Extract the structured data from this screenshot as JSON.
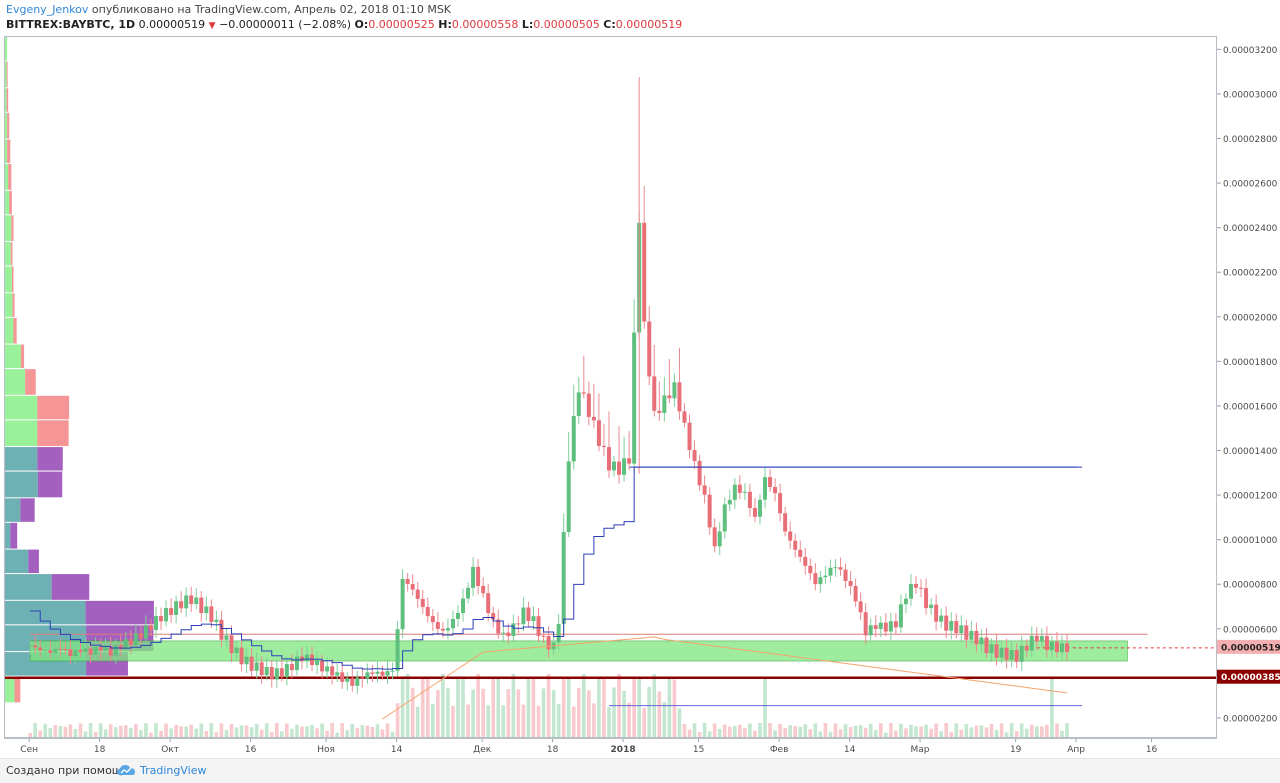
{
  "header": {
    "author": "Evgeny_Jenkov",
    "published_text": "опубликовано на TradingView.com, Апрель 02, 2018 01:10 MSK",
    "symbol": "BITTREX:BAYBTC, 1D",
    "last": "0.00000519",
    "change": "−0.00000011 (−2.08%)",
    "open_label": "O:",
    "open": "0.00000525",
    "high_label": "H:",
    "high": "0.00000558",
    "low_label": "L:",
    "low": "0.00000505",
    "close_label": "C:",
    "close": "0.00000519"
  },
  "footer": {
    "made_with": "Создано при помощи",
    "brand": "TradingView"
  },
  "colors": {
    "up": "#7fcf9a",
    "down": "#ec8a90",
    "up_body": "#5fbf7e",
    "down_body": "#e86f78",
    "vwap_line": "#2b3fb8",
    "zone_fill": "#7ee87e",
    "support_line": "#8b0000",
    "sma_line": "#f5a46f",
    "axis_text": "#4a4a4a"
  },
  "chart_data": {
    "type": "candlestick",
    "symbol": "BITTREX:BAYBTC",
    "interval": "1D",
    "y_axis": {
      "ticks": [
        "0.00000200",
        "0.00000400",
        "0.00000600",
        "0.00000800",
        "0.00001000",
        "0.00001200",
        "0.00001400",
        "0.00001600",
        "0.00001800",
        "0.00002000",
        "0.00002200",
        "0.00002400",
        "0.00002600",
        "0.00002800",
        "0.00003000",
        "0.00003200"
      ],
      "tick_values": [
        2e-06,
        4e-06,
        6e-06,
        8e-06,
        1e-05,
        1.2e-05,
        1.4e-05,
        1.6e-05,
        1.8e-05,
        2e-05,
        2.2e-05,
        2.4e-05,
        2.6e-05,
        2.8e-05,
        3e-05,
        3.2e-05
      ],
      "range": [
        1.1e-06,
        3.26e-05
      ],
      "price_labels": [
        {
          "label": "0.00000519",
          "value": 5.19e-06,
          "style": "current"
        },
        {
          "label": "0.00000385",
          "value": 3.85e-06,
          "style": "support"
        }
      ]
    },
    "x_axis": {
      "labels": [
        "Сен",
        "18",
        "Окт",
        "16",
        "Ноя",
        "14",
        "Дек",
        "18",
        "2018",
        "15",
        "Фев",
        "14",
        "Мар",
        "19",
        "Апр",
        "16"
      ],
      "label_days": [
        0,
        14,
        28,
        44,
        59,
        73,
        90,
        104,
        118,
        133,
        149,
        163,
        177,
        196,
        208,
        223
      ],
      "bold_labels": [
        "2018"
      ],
      "range_days": [
        -5,
        236
      ]
    },
    "horizontal_levels": [
      {
        "value": 1.33e-05,
        "from_day": 119,
        "to_day": 209,
        "color": "#2b3fb8"
      },
      {
        "value": 5.8e-06,
        "from_day": 0,
        "to_day": 222,
        "color": "#e07a7a"
      },
      {
        "value": 3.85e-06,
        "from_day": -5,
        "to_day": 236,
        "color": "#8b0000"
      },
      {
        "value": 2.6e-06,
        "from_day": 115,
        "to_day": 209,
        "color": "#6666dd"
      }
    ],
    "zone": {
      "from_day": 0,
      "to_day": 218,
      "low": 4.6e-06,
      "high": 5.5e-06
    },
    "volume_profile": [
      {
        "price_low": 3.15e-05,
        "price_high": 3.26e-05,
        "up": 0.4,
        "down": 0.0
      },
      {
        "price_low": 3.03e-05,
        "price_high": 3.15e-05,
        "up": 0.3,
        "down": 0.2
      },
      {
        "price_low": 2.92e-05,
        "price_high": 3.03e-05,
        "up": 0.3,
        "down": 0.3
      },
      {
        "price_low": 2.8e-05,
        "price_high": 2.92e-05,
        "up": 0.4,
        "down": 0.4
      },
      {
        "price_low": 2.69e-05,
        "price_high": 2.8e-05,
        "up": 0.4,
        "down": 0.6
      },
      {
        "price_low": 2.57e-05,
        "price_high": 2.69e-05,
        "up": 0.6,
        "down": 0.6
      },
      {
        "price_low": 2.46e-05,
        "price_high": 2.57e-05,
        "up": 0.8,
        "down": 0.5
      },
      {
        "price_low": 2.34e-05,
        "price_high": 2.46e-05,
        "up": 1.2,
        "down": 0.4
      },
      {
        "price_low": 2.23e-05,
        "price_high": 2.34e-05,
        "up": 1.1,
        "down": 0.3
      },
      {
        "price_low": 2.11e-05,
        "price_high": 2.23e-05,
        "up": 1.3,
        "down": 0.3
      },
      {
        "price_low": 2e-05,
        "price_high": 2.11e-05,
        "up": 1.4,
        "down": 0.4
      },
      {
        "price_low": 1.88e-05,
        "price_high": 2e-05,
        "up": 1.6,
        "down": 0.6
      },
      {
        "price_low": 1.77e-05,
        "price_high": 1.88e-05,
        "up": 3.0,
        "down": 0.6
      },
      {
        "price_low": 1.65e-05,
        "price_high": 1.77e-05,
        "up": 3.8,
        "down": 2.0
      },
      {
        "price_low": 1.54e-05,
        "price_high": 1.65e-05,
        "up": 6.1,
        "down": 6.0
      },
      {
        "price_low": 1.42e-05,
        "price_high": 1.54e-05,
        "up": 6.1,
        "down": 5.9
      },
      {
        "price_low": 1.31e-05,
        "price_high": 1.42e-05,
        "up": 6.1,
        "down": 4.8
      },
      {
        "price_low": 1.19e-05,
        "price_high": 1.31e-05,
        "up": 6.2,
        "down": 4.6
      },
      {
        "price_low": 1.08e-05,
        "price_high": 1.19e-05,
        "up": 2.9,
        "down": 2.7
      },
      {
        "price_low": 9.6e-06,
        "price_high": 1.08e-05,
        "up": 1.0,
        "down": 1.3
      },
      {
        "price_low": 8.5e-06,
        "price_high": 9.6e-06,
        "up": 4.4,
        "down": 2.0
      },
      {
        "price_low": 7.3e-06,
        "price_high": 8.5e-06,
        "up": 8.8,
        "down": 7.1
      },
      {
        "price_low": 6.2e-06,
        "price_high": 7.3e-06,
        "up": 15.2,
        "down": 12.9
      },
      {
        "price_low": 5e-06,
        "price_high": 6.2e-06,
        "up": 15.3,
        "down": 12.7
      },
      {
        "price_low": 3.9e-06,
        "price_high": 5e-06,
        "up": 15.3,
        "down": 7.9
      },
      {
        "price_low": 2.7e-06,
        "price_high": 3.9e-06,
        "up": 1.8,
        "down": 1.1
      }
    ],
    "series_close": [
      [
        0,
        5.3
      ],
      [
        2,
        5.1
      ],
      [
        4,
        5.0
      ],
      [
        6,
        5.2
      ],
      [
        8,
        4.9
      ],
      [
        10,
        5.1
      ],
      [
        12,
        5.0
      ],
      [
        14,
        5.2
      ],
      [
        16,
        5.0
      ],
      [
        18,
        5.3
      ],
      [
        20,
        5.5
      ],
      [
        22,
        5.8
      ],
      [
        24,
        6.2
      ],
      [
        26,
        6.6
      ],
      [
        28,
        6.9
      ],
      [
        30,
        7.2
      ],
      [
        32,
        7.4
      ],
      [
        34,
        7.0
      ],
      [
        36,
        6.6
      ],
      [
        38,
        5.8
      ],
      [
        40,
        5.2
      ],
      [
        42,
        4.7
      ],
      [
        44,
        4.4
      ],
      [
        46,
        4.2
      ],
      [
        48,
        4.0
      ],
      [
        50,
        4.1
      ],
      [
        52,
        4.4
      ],
      [
        54,
        4.8
      ],
      [
        56,
        4.6
      ],
      [
        58,
        4.3
      ],
      [
        60,
        4.1
      ],
      [
        62,
        3.8
      ],
      [
        64,
        3.6
      ],
      [
        66,
        3.9
      ],
      [
        68,
        4.1
      ],
      [
        70,
        4.0
      ],
      [
        72,
        4.2
      ],
      [
        73,
        6.0
      ],
      [
        74,
        8.3
      ],
      [
        76,
        7.8
      ],
      [
        78,
        7.0
      ],
      [
        80,
        6.3
      ],
      [
        82,
        5.9
      ],
      [
        84,
        6.4
      ],
      [
        86,
        7.3
      ],
      [
        88,
        8.7
      ],
      [
        90,
        7.5
      ],
      [
        92,
        6.3
      ],
      [
        94,
        5.7
      ],
      [
        96,
        6.1
      ],
      [
        98,
        6.8
      ],
      [
        100,
        6.4
      ],
      [
        102,
        5.5
      ],
      [
        104,
        5.2
      ],
      [
        105,
        6.5
      ],
      [
        107,
        13.8
      ],
      [
        109,
        16.9
      ],
      [
        111,
        15.8
      ],
      [
        113,
        14.5
      ],
      [
        115,
        13.4
      ],
      [
        117,
        13.2
      ],
      [
        119,
        13.7
      ],
      [
        121,
        24.5
      ],
      [
        122,
        19.6
      ],
      [
        124,
        15.6
      ],
      [
        126,
        16.3
      ],
      [
        128,
        16.9
      ],
      [
        130,
        15.1
      ],
      [
        132,
        13.4
      ],
      [
        134,
        11.9
      ],
      [
        136,
        9.6
      ],
      [
        138,
        11.5
      ],
      [
        140,
        12.4
      ],
      [
        142,
        12.1
      ],
      [
        144,
        11.0
      ],
      [
        146,
        12.8
      ],
      [
        148,
        12.1
      ],
      [
        150,
        10.4
      ],
      [
        152,
        9.6
      ],
      [
        154,
        8.9
      ],
      [
        156,
        8.1
      ],
      [
        158,
        8.5
      ],
      [
        160,
        8.9
      ],
      [
        162,
        8.3
      ],
      [
        164,
        7.4
      ],
      [
        166,
        5.9
      ],
      [
        168,
        6.2
      ],
      [
        170,
        6.1
      ],
      [
        172,
        6.3
      ],
      [
        174,
        7.6
      ],
      [
        176,
        8.1
      ],
      [
        178,
        7.2
      ],
      [
        180,
        6.6
      ],
      [
        182,
        6.2
      ],
      [
        184,
        6.1
      ],
      [
        186,
        5.8
      ],
      [
        188,
        5.6
      ],
      [
        190,
        5.2
      ],
      [
        192,
        5.0
      ],
      [
        194,
        4.9
      ],
      [
        196,
        4.8
      ],
      [
        198,
        5.3
      ],
      [
        200,
        5.7
      ],
      [
        202,
        5.3
      ],
      [
        204,
        5.2
      ],
      [
        206,
        5.19
      ]
    ],
    "series_units": "price in 1e-6 BTC"
  }
}
